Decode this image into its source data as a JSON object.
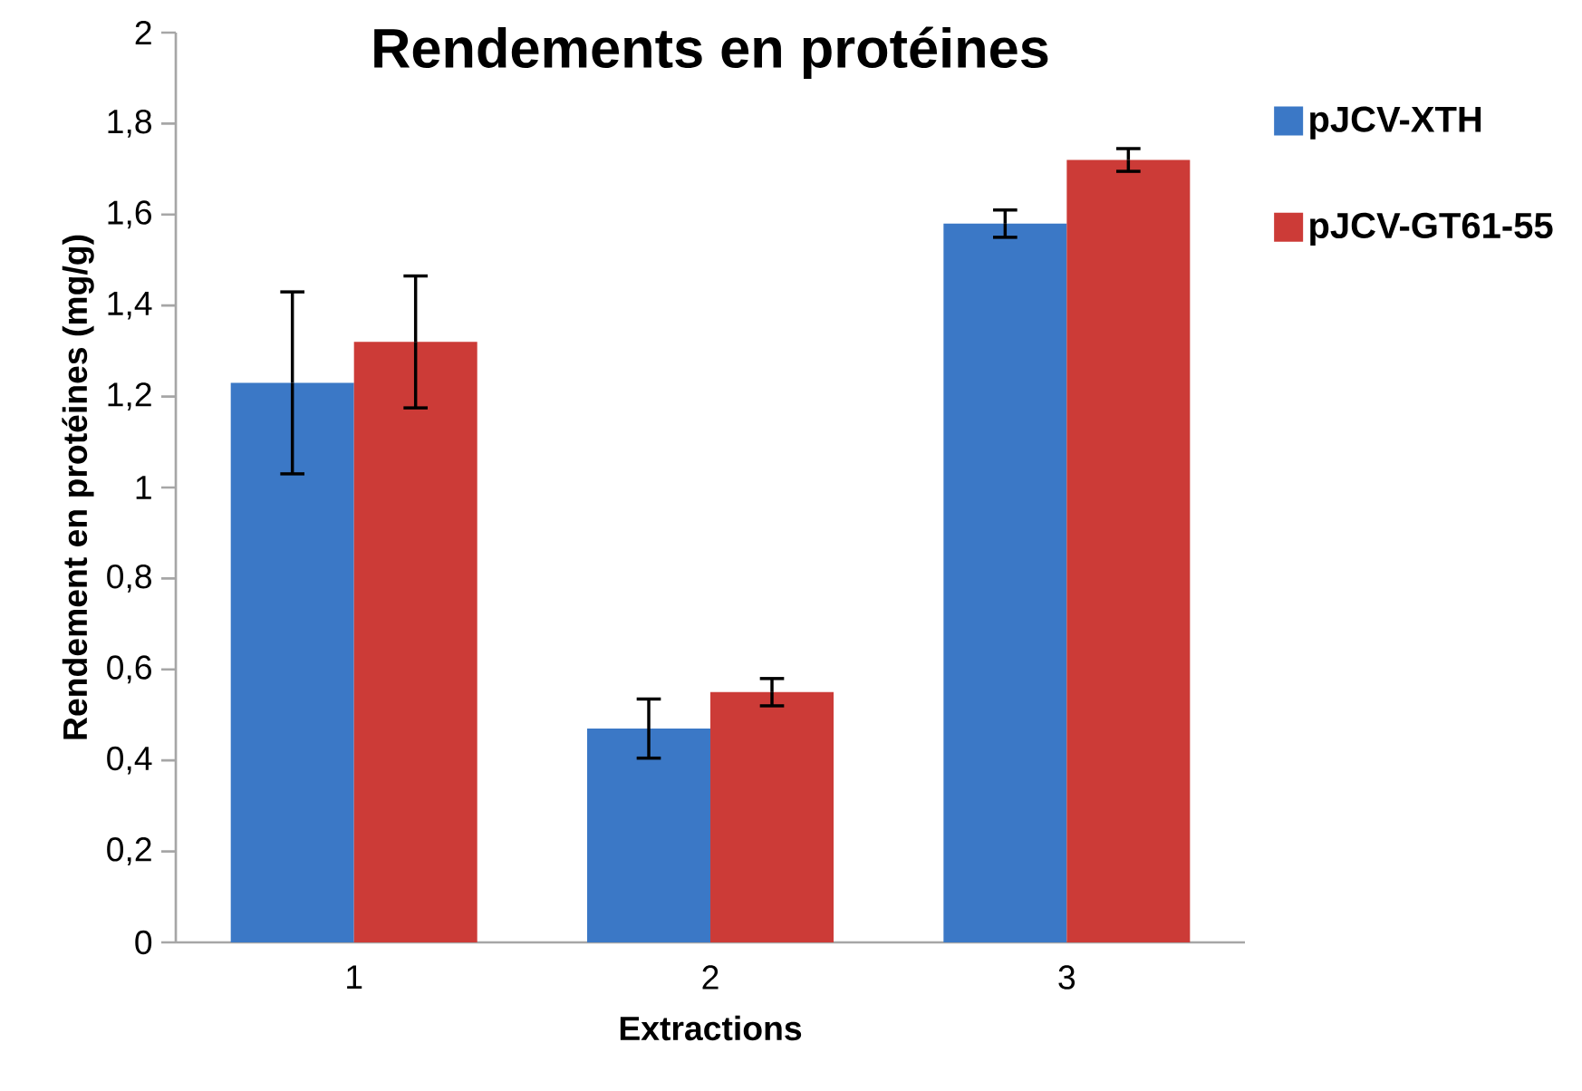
{
  "chart_data": {
    "type": "bar",
    "title": "Rendements en protéines",
    "xlabel": "Extractions",
    "ylabel": "Rendement en protéines (mg/g)",
    "categories": [
      "1",
      "2",
      "3"
    ],
    "series": [
      {
        "name": "pJCV-XTH",
        "color": "#3b78c6",
        "values": [
          1.23,
          0.47,
          1.58
        ],
        "errors": [
          0.2,
          0.065,
          0.03
        ]
      },
      {
        "name": "pJCV-GT61-55",
        "color": "#cc3b37",
        "values": [
          1.32,
          0.55,
          1.72
        ],
        "errors": [
          0.145,
          0.03,
          0.025
        ]
      }
    ],
    "ylim": [
      0,
      2
    ],
    "yticks": [
      0,
      {
        "value": 0.2,
        "label": "0,2"
      },
      {
        "value": 0.4,
        "label": "0,4"
      },
      {
        "value": 0.6,
        "label": "0,6"
      },
      {
        "value": 0.8,
        "label": "0,8"
      },
      1,
      {
        "value": 1.2,
        "label": "1,2"
      },
      {
        "value": 1.4,
        "label": "1,4"
      },
      {
        "value": 1.6,
        "label": "1,6"
      },
      {
        "value": 1.8,
        "label": "1,8"
      },
      2
    ],
    "grid": false,
    "legend": "right"
  }
}
